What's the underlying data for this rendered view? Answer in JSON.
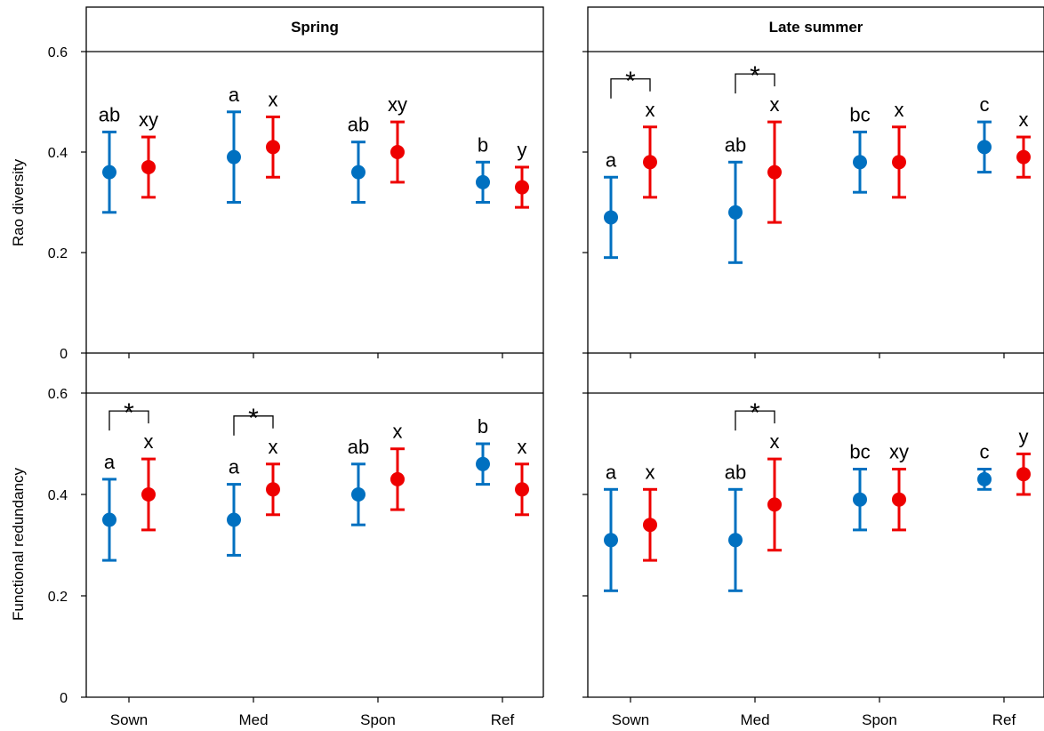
{
  "chart_data": {
    "type": "scatter",
    "categories": [
      "Sown",
      "Med",
      "Spon",
      "Ref"
    ],
    "colors": {
      "blue": "#0070C0",
      "red": "#EE0000"
    },
    "panels": [
      {
        "title": "Spring",
        "ylabel": "Rao diversity",
        "ylim": [
          0,
          0.6
        ],
        "yticks": [
          "0",
          "0.2",
          "0.4",
          "0.6"
        ],
        "groups": [
          {
            "category": "Sown",
            "blue": {
              "mean": 0.36,
              "lo": 0.28,
              "hi": 0.44,
              "label": "ab"
            },
            "red": {
              "mean": 0.37,
              "lo": 0.31,
              "hi": 0.43,
              "label": "xy"
            },
            "significant": false
          },
          {
            "category": "Med",
            "blue": {
              "mean": 0.39,
              "lo": 0.3,
              "hi": 0.48,
              "label": "a"
            },
            "red": {
              "mean": 0.41,
              "lo": 0.35,
              "hi": 0.47,
              "label": "x"
            },
            "significant": false
          },
          {
            "category": "Spon",
            "blue": {
              "mean": 0.36,
              "lo": 0.3,
              "hi": 0.42,
              "label": "ab"
            },
            "red": {
              "mean": 0.4,
              "lo": 0.34,
              "hi": 0.46,
              "label": "xy"
            },
            "significant": false
          },
          {
            "category": "Ref",
            "blue": {
              "mean": 0.34,
              "lo": 0.3,
              "hi": 0.38,
              "label": "b"
            },
            "red": {
              "mean": 0.33,
              "lo": 0.29,
              "hi": 0.37,
              "label": "y"
            },
            "significant": false
          }
        ]
      },
      {
        "title": "Late summer",
        "ylabel": "",
        "ylim": [
          0,
          0.6
        ],
        "yticks": [],
        "groups": [
          {
            "category": "Sown",
            "blue": {
              "mean": 0.27,
              "lo": 0.19,
              "hi": 0.35,
              "label": "a"
            },
            "red": {
              "mean": 0.38,
              "lo": 0.31,
              "hi": 0.45,
              "label": "x"
            },
            "significant": true,
            "star": "*"
          },
          {
            "category": "Med",
            "blue": {
              "mean": 0.28,
              "lo": 0.18,
              "hi": 0.38,
              "label": "ab"
            },
            "red": {
              "mean": 0.36,
              "lo": 0.26,
              "hi": 0.46,
              "label": "x"
            },
            "significant": true,
            "star": "*"
          },
          {
            "category": "Spon",
            "blue": {
              "mean": 0.38,
              "lo": 0.32,
              "hi": 0.44,
              "label": "bc"
            },
            "red": {
              "mean": 0.38,
              "lo": 0.31,
              "hi": 0.45,
              "label": "x"
            },
            "significant": false
          },
          {
            "category": "Ref",
            "blue": {
              "mean": 0.41,
              "lo": 0.36,
              "hi": 0.46,
              "label": "c"
            },
            "red": {
              "mean": 0.39,
              "lo": 0.35,
              "hi": 0.43,
              "label": "x"
            },
            "significant": false
          }
        ]
      },
      {
        "title": "",
        "ylabel": "Functional redundancy",
        "ylim": [
          0,
          0.6
        ],
        "yticks": [
          "0",
          "0.2",
          "0.4",
          "0.6"
        ],
        "groups": [
          {
            "category": "Sown",
            "blue": {
              "mean": 0.35,
              "lo": 0.27,
              "hi": 0.43,
              "label": "a"
            },
            "red": {
              "mean": 0.4,
              "lo": 0.33,
              "hi": 0.47,
              "label": "x"
            },
            "significant": true,
            "star": "*"
          },
          {
            "category": "Med",
            "blue": {
              "mean": 0.35,
              "lo": 0.28,
              "hi": 0.42,
              "label": "a"
            },
            "red": {
              "mean": 0.41,
              "lo": 0.36,
              "hi": 0.46,
              "label": "x"
            },
            "significant": true,
            "star": "*"
          },
          {
            "category": "Spon",
            "blue": {
              "mean": 0.4,
              "lo": 0.34,
              "hi": 0.46,
              "label": "ab"
            },
            "red": {
              "mean": 0.43,
              "lo": 0.37,
              "hi": 0.49,
              "label": "x"
            },
            "significant": false
          },
          {
            "category": "Ref",
            "blue": {
              "mean": 0.46,
              "lo": 0.42,
              "hi": 0.5,
              "label": "b"
            },
            "red": {
              "mean": 0.41,
              "lo": 0.36,
              "hi": 0.46,
              "label": "x"
            },
            "significant": false
          }
        ]
      },
      {
        "title": "",
        "ylabel": "",
        "ylim": [
          0,
          0.6
        ],
        "yticks": [],
        "groups": [
          {
            "category": "Sown",
            "blue": {
              "mean": 0.31,
              "lo": 0.21,
              "hi": 0.41,
              "label": "a"
            },
            "red": {
              "mean": 0.34,
              "lo": 0.27,
              "hi": 0.41,
              "label": "x"
            },
            "significant": false
          },
          {
            "category": "Med",
            "blue": {
              "mean": 0.31,
              "lo": 0.21,
              "hi": 0.41,
              "label": "ab"
            },
            "red": {
              "mean": 0.38,
              "lo": 0.29,
              "hi": 0.47,
              "label": "x"
            },
            "significant": true,
            "star": "*"
          },
          {
            "category": "Spon",
            "blue": {
              "mean": 0.39,
              "lo": 0.33,
              "hi": 0.45,
              "label": "bc"
            },
            "red": {
              "mean": 0.39,
              "lo": 0.33,
              "hi": 0.45,
              "label": "xy"
            },
            "significant": false
          },
          {
            "category": "Ref",
            "blue": {
              "mean": 0.43,
              "lo": 0.41,
              "hi": 0.45,
              "label": "c"
            },
            "red": {
              "mean": 0.44,
              "lo": 0.4,
              "hi": 0.48,
              "label": "y"
            },
            "significant": false
          }
        ]
      }
    ]
  }
}
